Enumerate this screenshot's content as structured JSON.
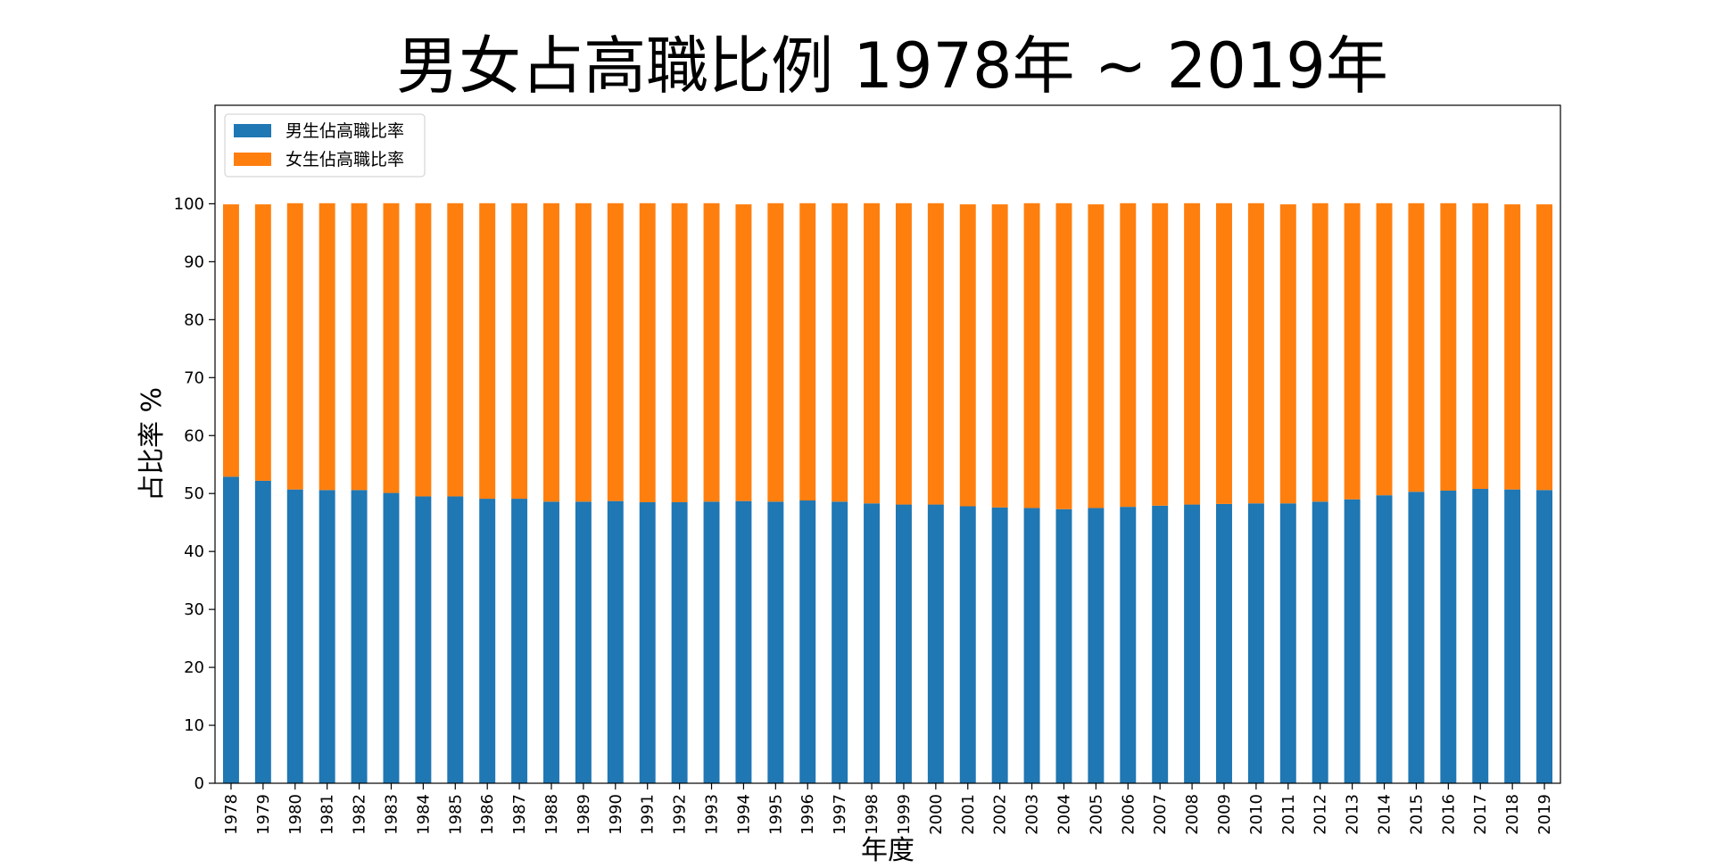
{
  "chart_data": {
    "type": "bar",
    "stacked": true,
    "title": "男女占高職比例 1978年 ~ 2019年",
    "xlabel": "年度",
    "ylabel": "占比率 %",
    "ylim": [
      0,
      117
    ],
    "yticks": [
      0,
      10,
      20,
      30,
      40,
      50,
      60,
      70,
      80,
      90,
      100
    ],
    "grid": false,
    "legend_position": "top-left",
    "categories": [
      "1978",
      "1979",
      "1980",
      "1981",
      "1982",
      "1983",
      "1984",
      "1985",
      "1986",
      "1987",
      "1988",
      "1989",
      "1990",
      "1991",
      "1992",
      "1993",
      "1994",
      "1995",
      "1996",
      "1997",
      "1998",
      "1999",
      "2000",
      "2001",
      "2002",
      "2003",
      "2004",
      "2005",
      "2006",
      "2007",
      "2008",
      "2009",
      "2010",
      "2011",
      "2012",
      "2013",
      "2014",
      "2015",
      "2016",
      "2017",
      "2018",
      "2019"
    ],
    "series": [
      {
        "name": "男生佔高職比率",
        "color": "#1f77b4",
        "values": [
          52.9,
          52.2,
          50.7,
          50.6,
          50.6,
          50.1,
          49.5,
          49.5,
          49.1,
          49.1,
          48.6,
          48.6,
          48.7,
          48.5,
          48.5,
          48.6,
          48.7,
          48.6,
          48.8,
          48.6,
          48.3,
          48.1,
          48.1,
          47.8,
          47.6,
          47.5,
          47.3,
          47.5,
          47.7,
          47.9,
          48.1,
          48.2,
          48.3,
          48.3,
          48.6,
          49.0,
          49.7,
          50.3,
          50.5,
          50.8,
          50.7,
          50.6
        ]
      },
      {
        "name": "女生佔高職比率",
        "color": "#ff7f0e",
        "values": [
          47.0,
          47.7,
          49.4,
          49.5,
          49.5,
          50.0,
          50.6,
          50.6,
          51.0,
          51.0,
          51.5,
          51.5,
          51.4,
          51.6,
          51.6,
          51.5,
          51.2,
          51.5,
          51.3,
          51.5,
          51.8,
          52.0,
          52.0,
          52.1,
          52.3,
          52.6,
          52.8,
          52.4,
          52.4,
          52.2,
          52.0,
          51.9,
          51.8,
          51.6,
          51.5,
          51.1,
          50.4,
          49.8,
          49.6,
          49.3,
          49.2,
          49.3
        ]
      }
    ]
  }
}
